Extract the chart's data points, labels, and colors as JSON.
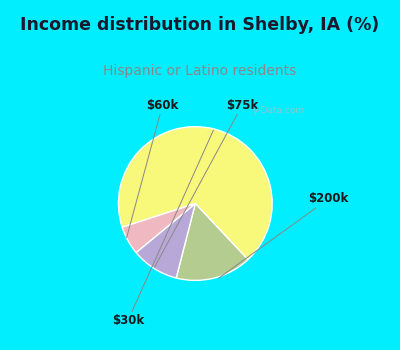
{
  "title": "Income distribution in Shelby, IA (%)",
  "subtitle": "Hispanic or Latino residents",
  "title_color": "#1a1a2e",
  "subtitle_color": "#7a7a7a",
  "bg_color_header": "#00eeff",
  "bg_color_chart": "#d8ede5",
  "border_color": "#00eeff",
  "slices": [
    {
      "label": "$30k",
      "value": 68,
      "color": "#f8f87a"
    },
    {
      "label": "$200k",
      "value": 16,
      "color": "#b5cc90"
    },
    {
      "label": "$75k",
      "value": 10,
      "color": "#b8a8d8"
    },
    {
      "label": "$60k",
      "value": 6,
      "color": "#f0b8c0"
    }
  ],
  "startangle": 198,
  "label_fontsize": 8.5,
  "title_fontsize": 12.5,
  "subtitle_fontsize": 10
}
